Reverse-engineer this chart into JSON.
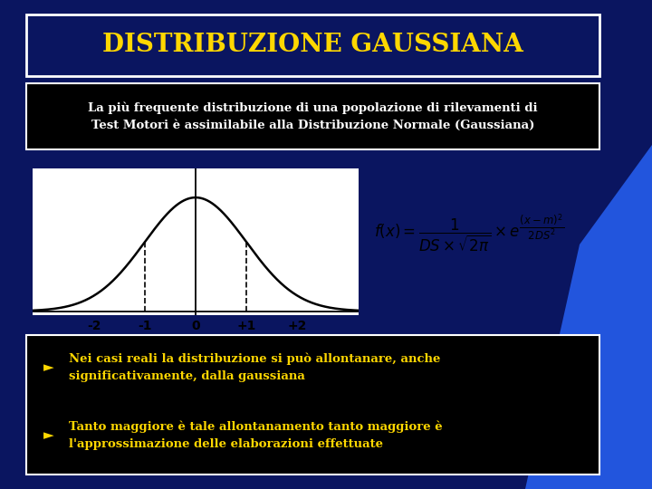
{
  "title": "DISTRIBUZIONE GAUSSIANA",
  "title_color": "#FFD700",
  "bg_color": "#0a1560",
  "subtitle_text": "La più frequente distribuzione di una popolazione di rilevamenti di\nTest Motori è assimilabile alla Distribuzione Normale (Gaussiana)",
  "subtitle_color": "#FFFFFF",
  "subtitle_bg": "#000000",
  "bullet1": "Nei casi reali la distribuzione si può allontanare, anche\nsignificativamente, dalla gaussiana",
  "bullet2": "Tanto maggiore è tale allontanamento tanto maggiore è\nl'approssimazione delle elaborazioni effettuate",
  "bullet_color": "#FFD700",
  "bullet_bg": "#000000",
  "tick_labels": [
    "-2",
    "-1",
    "0",
    "+1",
    "+2"
  ],
  "tick_values": [
    -2,
    -1,
    0,
    1,
    2
  ],
  "dashed_lines": [
    -1,
    1
  ],
  "plot_bg": "#FFFFFF",
  "curve_color": "#000000",
  "gauss_mean": 0,
  "gauss_std": 1,
  "deco_color": "#2255DD"
}
